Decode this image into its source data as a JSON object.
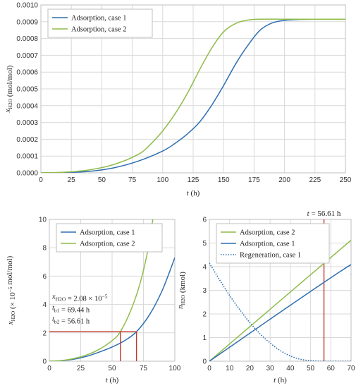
{
  "chart_data": [
    {
      "type": "line",
      "xlabel_var": "t",
      "xlabel_unit": "(h)",
      "ylabel_var": "x",
      "ylabel_sub": "H2O",
      "ylabel_unit": "(mol/mol)",
      "xlim": [
        0,
        250
      ],
      "ylim": [
        0,
        0.001
      ],
      "xticks": [
        0,
        25,
        50,
        75,
        100,
        125,
        150,
        175,
        200,
        225,
        250
      ],
      "xtick_labels": [
        "0",
        "25",
        "50",
        "75",
        "100",
        "125",
        "150",
        "175",
        "200",
        "225",
        "250"
      ],
      "yticks": [
        0,
        0.0001,
        0.0002,
        0.0003,
        0.0004,
        0.0005,
        0.0006,
        0.0007,
        0.0008,
        0.0009,
        0.001
      ],
      "ytick_labels": [
        "0.0000",
        "0.0001",
        "0.0002",
        "0.0003",
        "0.0004",
        "0.0005",
        "0.0006",
        "0.0007",
        "0.0008",
        "0.0009",
        "0.0010"
      ],
      "grid": true,
      "legend_position": "top-left",
      "series": [
        {
          "name": "Adsorption, case 1",
          "color": "#2e6fb0",
          "x": [
            0,
            20,
            40,
            60,
            80,
            100,
            110,
            120,
            130,
            140,
            150,
            160,
            170,
            180,
            190,
            200,
            210,
            225,
            250
          ],
          "y": [
            0,
            2e-06,
            9e-06,
            3e-05,
            7e-05,
            0.00013,
            0.000175,
            0.00023,
            0.0003,
            0.0004,
            0.00052,
            0.00065,
            0.00076,
            0.00085,
            0.000893,
            0.000908,
            0.000913,
            0.000915,
            0.000915
          ]
        },
        {
          "name": "Adsorption, case 2",
          "color": "#8fbc4a",
          "x": [
            0,
            20,
            40,
            60,
            80,
            90,
            100,
            110,
            120,
            130,
            140,
            150,
            160,
            170,
            180,
            200,
            225,
            250
          ],
          "y": [
            0,
            4e-06,
            1.8e-05,
            5e-05,
            0.00011,
            0.00017,
            0.00025,
            0.00035,
            0.00047,
            0.00061,
            0.00074,
            0.00084,
            0.00089,
            0.00091,
            0.000915,
            0.000915,
            0.000915,
            0.000915
          ]
        }
      ]
    },
    {
      "type": "line",
      "xlabel_var": "t",
      "xlabel_unit": "(h)",
      "ylabel_var": "x",
      "ylabel_sub": "H2O",
      "ylabel_unit": "(× 10",
      "ylabel_exp": "−5",
      "ylabel_unit2": " mol/mol)",
      "xlim": [
        0,
        100
      ],
      "ylim": [
        0,
        10
      ],
      "xticks": [
        0,
        25,
        50,
        75,
        100
      ],
      "xtick_labels": [
        "0",
        "25",
        "50",
        "75",
        "100"
      ],
      "yticks": [
        0,
        2,
        4,
        6,
        8,
        10
      ],
      "ytick_labels": [
        "0",
        "2",
        "4",
        "6",
        "8",
        "10"
      ],
      "grid": true,
      "legend_position": "top-left",
      "series": [
        {
          "name": "Adsorption, case 1",
          "color": "#2e6fb0",
          "x": [
            0,
            10,
            20,
            30,
            40,
            50,
            60,
            69.44,
            80,
            90,
            100
          ],
          "y": [
            0,
            0.04,
            0.15,
            0.35,
            0.65,
            1.0,
            1.45,
            2.08,
            3.3,
            5.0,
            7.3
          ]
        },
        {
          "name": "Adsorption, case 2",
          "color": "#8fbc4a",
          "x": [
            0,
            10,
            20,
            30,
            40,
            50,
            56.61,
            65,
            72,
            78,
            82.5
          ],
          "y": [
            0,
            0.05,
            0.2,
            0.45,
            0.85,
            1.45,
            2.08,
            3.6,
            5.4,
            7.6,
            10
          ]
        }
      ],
      "annotation": {
        "x_var": "x",
        "x_sub": "H2O",
        "x_value_text": " = 2.08 × 10",
        "x_value_exp": "−5",
        "tb1_var": "t",
        "tb1_sub": "b1",
        "tb1_text": " = 69.44 h",
        "tb2_var": "t",
        "tb2_sub": "b2",
        "tb2_text": " = 56.61 h",
        "marker_color": "#c0392b",
        "marker_y": 2.08,
        "marker_x1": 56.61,
        "marker_x2": 69.44
      }
    },
    {
      "type": "line",
      "xlabel_var": "t",
      "xlabel_unit": "(h)",
      "ylabel_var": "n",
      "ylabel_sub": "H2O",
      "ylabel_unit": "(kmol)",
      "xlim": [
        0,
        70
      ],
      "ylim": [
        0,
        6
      ],
      "xticks": [
        0,
        10,
        20,
        30,
        40,
        50,
        60,
        70
      ],
      "xtick_labels": [
        "0",
        "10",
        "20",
        "30",
        "40",
        "50",
        "60",
        "70"
      ],
      "yticks": [
        0,
        1,
        2,
        3,
        4,
        5,
        6
      ],
      "ytick_labels": [
        "0",
        "1",
        "2",
        "3",
        "4",
        "5",
        "6"
      ],
      "grid": true,
      "legend_position": "top-left",
      "vline": {
        "x": 56.61,
        "color": "#c0392b",
        "label_var": "t",
        "label_text": " = 56.61 h"
      },
      "series": [
        {
          "name": "Adsorption, case 2",
          "color": "#8fbc4a",
          "style": "solid",
          "x": [
            0,
            70
          ],
          "y": [
            0,
            5.12
          ]
        },
        {
          "name": "Adsorption, case 1",
          "color": "#2e6fb0",
          "style": "solid",
          "x": [
            0,
            69.3,
            70
          ],
          "y": [
            0,
            4.05,
            3.65
          ]
        },
        {
          "name": "Regeneration, case 1",
          "color": "#2e6fb0",
          "style": "dotted",
          "x": [
            0,
            5,
            10,
            15,
            20,
            25,
            30,
            35,
            40,
            45,
            50,
            55,
            60,
            65,
            70
          ],
          "y": [
            4.15,
            3.45,
            2.78,
            2.18,
            1.63,
            1.16,
            0.77,
            0.45,
            0.22,
            0.08,
            0.02,
            0.0,
            0.0,
            0.0,
            0.0
          ]
        }
      ]
    }
  ]
}
